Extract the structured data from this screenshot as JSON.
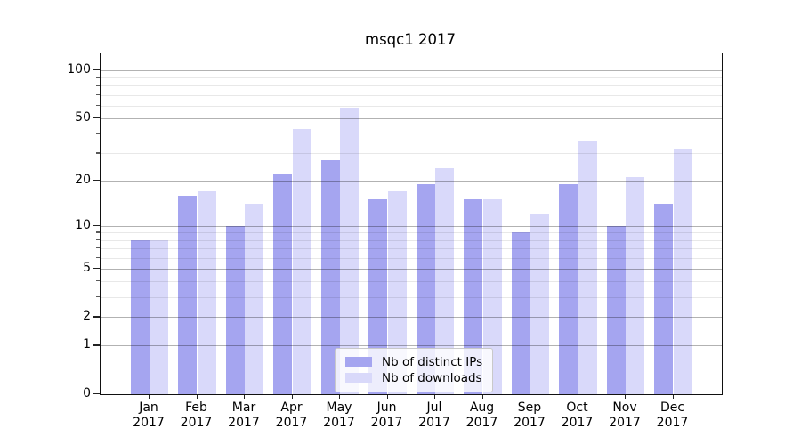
{
  "chart_data": {
    "type": "bar",
    "title": "msqc1 2017",
    "categories": [
      "Jan",
      "Feb",
      "Mar",
      "Apr",
      "May",
      "Jun",
      "Jul",
      "Aug",
      "Sep",
      "Oct",
      "Nov",
      "Dec"
    ],
    "year_label": "2017",
    "series": [
      {
        "name": "Nb of distinct IPs",
        "color": "#a5a5f0",
        "values": [
          8,
          16,
          10,
          22,
          27,
          15,
          19,
          15,
          9,
          19,
          10,
          14
        ]
      },
      {
        "name": "Nb of downloads",
        "color": "#d9d9fa",
        "values": [
          8,
          17,
          14,
          43,
          58,
          17,
          24,
          15,
          12,
          36,
          21,
          32
        ]
      }
    ],
    "y_scale": "log10(1+y)",
    "y_major_ticks": [
      100,
      50,
      20,
      10,
      5,
      2,
      1,
      0
    ],
    "y_minor_ticks": [
      3,
      4,
      6,
      7,
      8,
      9,
      30,
      40,
      60,
      70,
      80,
      90
    ],
    "ylim": [
      0,
      127
    ],
    "grid": true,
    "legend_position": "lower center"
  }
}
